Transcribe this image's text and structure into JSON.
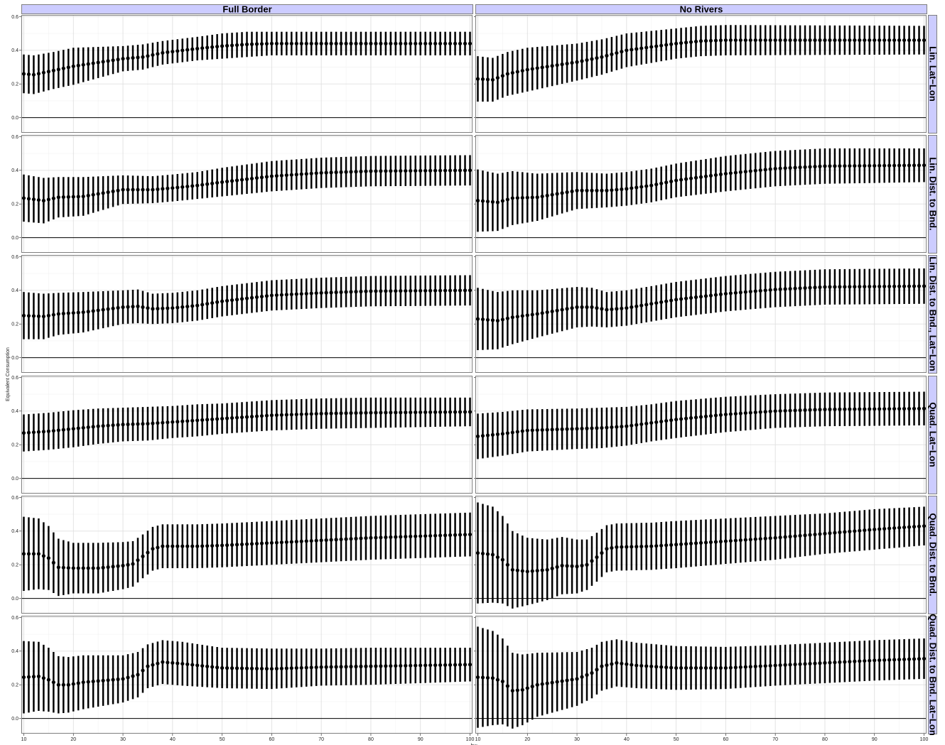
{
  "colors": {
    "strip_fill": "#ccccff",
    "strip_border": "#7f7f7f",
    "panel_border": "#7f7f7f",
    "grid_major": "#e0e0e0",
    "grid_minor": "#f2f2f2",
    "data": "#000000"
  },
  "chart_data": {
    "type": "scatter",
    "style": "point estimates with vertical confidence-interval bars, faceted grid (2 columns x 6 rows), horizontal reference line at y = 0",
    "xlabel": "bw",
    "ylabel": "Equivalent Consumption",
    "column_labels": [
      "Full Border",
      "No Rivers"
    ],
    "row_labels": [
      "Lin. Lat−Lon",
      "Lin. Dist. to Bnd.",
      "Lin. Dist. to Bnd., Lat−Lon",
      "Quad. Lat−Lon",
      "Quad. Dist. to Bnd.",
      "Quad. Dist. to Bnd. Lat−Lon"
    ],
    "xlim": [
      9.5,
      100.5
    ],
    "ylim": [
      -0.09,
      0.61
    ],
    "x_ticks": [
      10,
      20,
      30,
      40,
      50,
      60,
      70,
      80,
      90,
      100
    ],
    "y_ticks": [
      0.0,
      0.2,
      0.4,
      0.6
    ],
    "y_tick_labels": [
      "0.0",
      "0.2",
      "0.4",
      "0.6"
    ],
    "reference_line_y": 0,
    "bw_step": 1,
    "note_series": "knots are [bw, estimate, ci_half_width]; one estimate with CI is shown for every integer bw from 10 to 100, linearly interpolated between knots",
    "panels": [
      {
        "row": 0,
        "col": 0,
        "knots": [
          [
            10,
            0.26,
            0.115
          ],
          [
            12,
            0.255,
            0.115
          ],
          [
            16,
            0.28,
            0.11
          ],
          [
            20,
            0.305,
            0.11
          ],
          [
            30,
            0.35,
            0.075
          ],
          [
            34,
            0.36,
            0.075
          ],
          [
            38,
            0.385,
            0.07
          ],
          [
            45,
            0.41,
            0.07
          ],
          [
            50,
            0.425,
            0.075
          ],
          [
            55,
            0.435,
            0.075
          ],
          [
            60,
            0.44,
            0.07
          ],
          [
            100,
            0.44,
            0.07
          ]
        ]
      },
      {
        "row": 0,
        "col": 1,
        "knots": [
          [
            10,
            0.23,
            0.135
          ],
          [
            13,
            0.225,
            0.13
          ],
          [
            16,
            0.26,
            0.13
          ],
          [
            20,
            0.285,
            0.13
          ],
          [
            30,
            0.33,
            0.11
          ],
          [
            35,
            0.36,
            0.105
          ],
          [
            40,
            0.4,
            0.1
          ],
          [
            45,
            0.42,
            0.095
          ],
          [
            50,
            0.44,
            0.09
          ],
          [
            55,
            0.455,
            0.09
          ],
          [
            60,
            0.46,
            0.09
          ],
          [
            100,
            0.46,
            0.085
          ]
        ]
      },
      {
        "row": 1,
        "col": 0,
        "knots": [
          [
            10,
            0.235,
            0.14
          ],
          [
            14,
            0.22,
            0.135
          ],
          [
            17,
            0.24,
            0.12
          ],
          [
            22,
            0.245,
            0.115
          ],
          [
            30,
            0.285,
            0.085
          ],
          [
            36,
            0.285,
            0.08
          ],
          [
            40,
            0.295,
            0.08
          ],
          [
            45,
            0.31,
            0.08
          ],
          [
            50,
            0.33,
            0.085
          ],
          [
            60,
            0.365,
            0.09
          ],
          [
            70,
            0.385,
            0.09
          ],
          [
            80,
            0.395,
            0.09
          ],
          [
            100,
            0.4,
            0.09
          ]
        ]
      },
      {
        "row": 1,
        "col": 1,
        "knots": [
          [
            10,
            0.22,
            0.185
          ],
          [
            14,
            0.21,
            0.17
          ],
          [
            17,
            0.235,
            0.16
          ],
          [
            22,
            0.24,
            0.14
          ],
          [
            30,
            0.28,
            0.11
          ],
          [
            36,
            0.28,
            0.1
          ],
          [
            40,
            0.29,
            0.1
          ],
          [
            45,
            0.31,
            0.1
          ],
          [
            50,
            0.34,
            0.1
          ],
          [
            60,
            0.38,
            0.105
          ],
          [
            70,
            0.41,
            0.105
          ],
          [
            80,
            0.425,
            0.105
          ],
          [
            100,
            0.43,
            0.1
          ]
        ]
      },
      {
        "row": 2,
        "col": 0,
        "knots": [
          [
            10,
            0.25,
            0.14
          ],
          [
            14,
            0.245,
            0.135
          ],
          [
            17,
            0.26,
            0.125
          ],
          [
            22,
            0.27,
            0.12
          ],
          [
            30,
            0.3,
            0.1
          ],
          [
            33,
            0.305,
            0.1
          ],
          [
            36,
            0.29,
            0.09
          ],
          [
            40,
            0.295,
            0.09
          ],
          [
            45,
            0.31,
            0.09
          ],
          [
            50,
            0.335,
            0.09
          ],
          [
            60,
            0.37,
            0.09
          ],
          [
            70,
            0.385,
            0.09
          ],
          [
            80,
            0.395,
            0.09
          ],
          [
            100,
            0.4,
            0.09
          ]
        ]
      },
      {
        "row": 2,
        "col": 1,
        "knots": [
          [
            10,
            0.23,
            0.185
          ],
          [
            14,
            0.22,
            0.17
          ],
          [
            17,
            0.24,
            0.16
          ],
          [
            22,
            0.26,
            0.14
          ],
          [
            30,
            0.3,
            0.12
          ],
          [
            33,
            0.3,
            0.115
          ],
          [
            36,
            0.285,
            0.105
          ],
          [
            40,
            0.295,
            0.105
          ],
          [
            45,
            0.32,
            0.105
          ],
          [
            50,
            0.345,
            0.105
          ],
          [
            60,
            0.38,
            0.105
          ],
          [
            70,
            0.405,
            0.105
          ],
          [
            80,
            0.42,
            0.105
          ],
          [
            100,
            0.425,
            0.105
          ]
        ]
      },
      {
        "row": 3,
        "col": 0,
        "knots": [
          [
            10,
            0.27,
            0.11
          ],
          [
            15,
            0.28,
            0.11
          ],
          [
            20,
            0.295,
            0.11
          ],
          [
            25,
            0.31,
            0.105
          ],
          [
            30,
            0.32,
            0.1
          ],
          [
            35,
            0.325,
            0.1
          ],
          [
            40,
            0.335,
            0.095
          ],
          [
            45,
            0.345,
            0.095
          ],
          [
            50,
            0.355,
            0.09
          ],
          [
            55,
            0.365,
            0.09
          ],
          [
            60,
            0.375,
            0.09
          ],
          [
            70,
            0.385,
            0.09
          ],
          [
            80,
            0.39,
            0.09
          ],
          [
            100,
            0.395,
            0.085
          ]
        ]
      },
      {
        "row": 3,
        "col": 1,
        "knots": [
          [
            10,
            0.25,
            0.135
          ],
          [
            15,
            0.265,
            0.13
          ],
          [
            20,
            0.285,
            0.125
          ],
          [
            30,
            0.295,
            0.12
          ],
          [
            35,
            0.3,
            0.12
          ],
          [
            40,
            0.31,
            0.115
          ],
          [
            45,
            0.33,
            0.11
          ],
          [
            50,
            0.35,
            0.11
          ],
          [
            60,
            0.38,
            0.105
          ],
          [
            70,
            0.4,
            0.1
          ],
          [
            80,
            0.41,
            0.1
          ],
          [
            100,
            0.415,
            0.1
          ]
        ]
      },
      {
        "row": 4,
        "col": 0,
        "knots": [
          [
            10,
            0.265,
            0.22
          ],
          [
            13,
            0.265,
            0.21
          ],
          [
            15,
            0.24,
            0.19
          ],
          [
            17,
            0.185,
            0.17
          ],
          [
            20,
            0.18,
            0.15
          ],
          [
            25,
            0.18,
            0.15
          ],
          [
            30,
            0.195,
            0.14
          ],
          [
            32,
            0.205,
            0.135
          ],
          [
            34,
            0.25,
            0.13
          ],
          [
            36,
            0.295,
            0.13
          ],
          [
            38,
            0.31,
            0.13
          ],
          [
            45,
            0.31,
            0.13
          ],
          [
            50,
            0.315,
            0.13
          ],
          [
            60,
            0.33,
            0.13
          ],
          [
            70,
            0.345,
            0.13
          ],
          [
            80,
            0.36,
            0.13
          ],
          [
            90,
            0.37,
            0.13
          ],
          [
            100,
            0.38,
            0.13
          ]
        ]
      },
      {
        "row": 4,
        "col": 1,
        "knots": [
          [
            10,
            0.27,
            0.3
          ],
          [
            13,
            0.26,
            0.285
          ],
          [
            15,
            0.23,
            0.26
          ],
          [
            17,
            0.17,
            0.23
          ],
          [
            20,
            0.16,
            0.2
          ],
          [
            24,
            0.17,
            0.18
          ],
          [
            27,
            0.195,
            0.17
          ],
          [
            30,
            0.19,
            0.16
          ],
          [
            32,
            0.2,
            0.15
          ],
          [
            34,
            0.245,
            0.145
          ],
          [
            36,
            0.295,
            0.14
          ],
          [
            38,
            0.305,
            0.14
          ],
          [
            45,
            0.31,
            0.14
          ],
          [
            50,
            0.32,
            0.14
          ],
          [
            60,
            0.34,
            0.135
          ],
          [
            70,
            0.36,
            0.13
          ],
          [
            80,
            0.385,
            0.12
          ],
          [
            90,
            0.41,
            0.12
          ],
          [
            100,
            0.43,
            0.115
          ]
        ]
      },
      {
        "row": 5,
        "col": 0,
        "knots": [
          [
            10,
            0.245,
            0.215
          ],
          [
            13,
            0.25,
            0.205
          ],
          [
            15,
            0.23,
            0.19
          ],
          [
            17,
            0.2,
            0.17
          ],
          [
            19,
            0.2,
            0.165
          ],
          [
            22,
            0.215,
            0.16
          ],
          [
            30,
            0.235,
            0.14
          ],
          [
            33,
            0.26,
            0.135
          ],
          [
            35,
            0.31,
            0.13
          ],
          [
            38,
            0.335,
            0.13
          ],
          [
            42,
            0.325,
            0.13
          ],
          [
            50,
            0.3,
            0.12
          ],
          [
            60,
            0.295,
            0.12
          ],
          [
            70,
            0.305,
            0.11
          ],
          [
            80,
            0.31,
            0.11
          ],
          [
            100,
            0.32,
            0.1
          ]
        ]
      },
      {
        "row": 5,
        "col": 1,
        "knots": [
          [
            10,
            0.245,
            0.3
          ],
          [
            13,
            0.24,
            0.28
          ],
          [
            15,
            0.22,
            0.255
          ],
          [
            17,
            0.165,
            0.225
          ],
          [
            19,
            0.17,
            0.21
          ],
          [
            22,
            0.2,
            0.19
          ],
          [
            30,
            0.235,
            0.16
          ],
          [
            33,
            0.27,
            0.15
          ],
          [
            35,
            0.31,
            0.145
          ],
          [
            38,
            0.33,
            0.14
          ],
          [
            42,
            0.315,
            0.135
          ],
          [
            50,
            0.3,
            0.13
          ],
          [
            60,
            0.3,
            0.125
          ],
          [
            70,
            0.315,
            0.12
          ],
          [
            80,
            0.33,
            0.12
          ],
          [
            90,
            0.345,
            0.12
          ],
          [
            100,
            0.355,
            0.12
          ]
        ]
      }
    ]
  }
}
